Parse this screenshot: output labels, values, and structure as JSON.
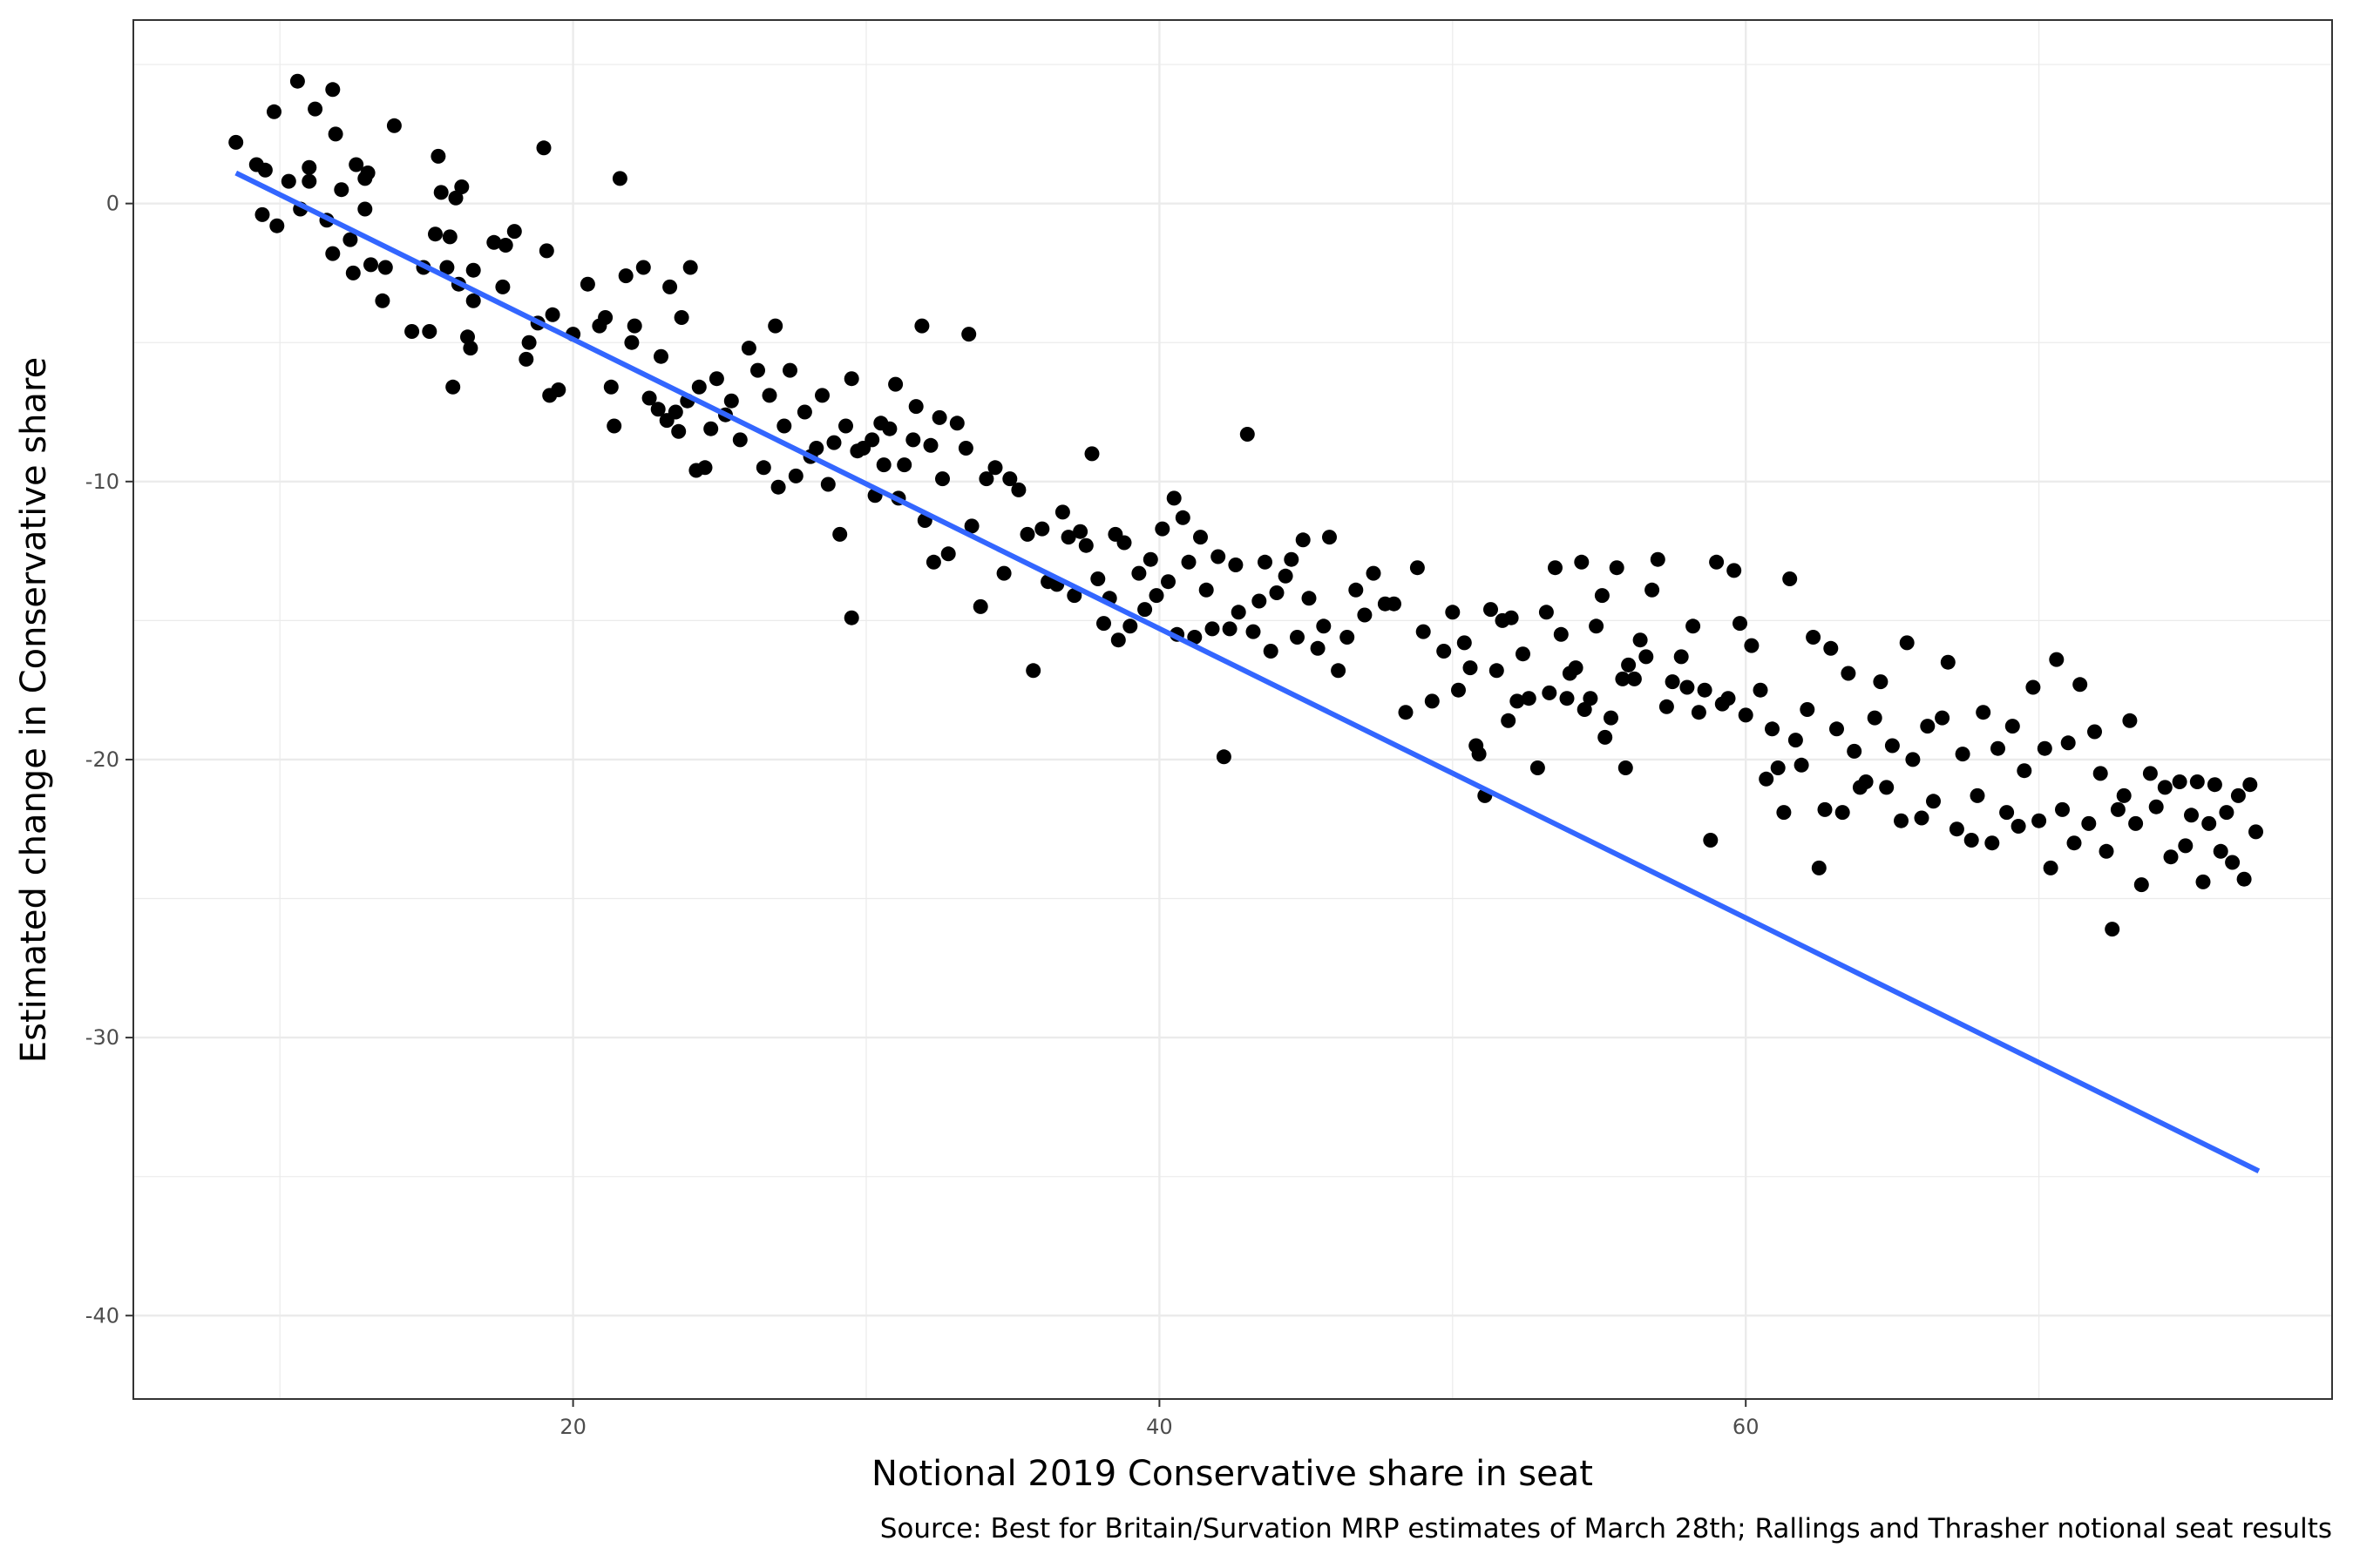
{
  "chart_data": {
    "type": "scatter",
    "xlabel": "Notional 2019 Conservative share in seat",
    "ylabel": "Estimated change in Conservative share",
    "caption": "Source: Best for Britain/Survation MRP estimates of March 28th; Rallings and Thrasher notional seat results",
    "xlim": [
      5,
      80
    ],
    "ylim": [
      -43,
      6.6
    ],
    "xticks": [
      20,
      40,
      60
    ],
    "yticks": [
      0,
      -10,
      -20,
      -30,
      -40
    ],
    "grid": true,
    "colors": {
      "points": "#000000",
      "trend": "#3366ff",
      "grid": "#ebebeb",
      "border": "#333333"
    },
    "trend_line": {
      "method": "linear",
      "x": [
        8.5,
        77.5
      ],
      "y": [
        1.1,
        -34.8
      ]
    },
    "points": [
      [
        8.5,
        2.2
      ],
      [
        9.2,
        1.4
      ],
      [
        9.5,
        1.2
      ],
      [
        9.4,
        -0.4
      ],
      [
        9.8,
        3.3
      ],
      [
        9.9,
        -0.8
      ],
      [
        10.3,
        0.8
      ],
      [
        10.6,
        4.4
      ],
      [
        10.7,
        -0.2
      ],
      [
        11.0,
        1.3
      ],
      [
        11.0,
        0.8
      ],
      [
        11.2,
        3.4
      ],
      [
        11.6,
        -0.6
      ],
      [
        11.8,
        4.1
      ],
      [
        11.9,
        2.5
      ],
      [
        12.1,
        0.5
      ],
      [
        11.8,
        -1.8
      ],
      [
        12.4,
        -1.3
      ],
      [
        12.5,
        -2.5
      ],
      [
        12.6,
        1.4
      ],
      [
        12.9,
        -0.2
      ],
      [
        13.0,
        1.1
      ],
      [
        13.1,
        -2.2
      ],
      [
        13.5,
        -3.5
      ],
      [
        13.6,
        -2.3
      ],
      [
        13.9,
        2.8
      ],
      [
        12.9,
        0.9
      ],
      [
        14.5,
        -4.6
      ],
      [
        14.9,
        -2.3
      ],
      [
        15.1,
        -4.6
      ],
      [
        15.3,
        -1.1
      ],
      [
        15.4,
        1.7
      ],
      [
        15.5,
        0.4
      ],
      [
        15.7,
        -2.3
      ],
      [
        15.8,
        -1.2
      ],
      [
        16.0,
        0.2
      ],
      [
        16.1,
        -2.9
      ],
      [
        16.2,
        0.6
      ],
      [
        16.5,
        -5.2
      ],
      [
        15.9,
        -6.6
      ],
      [
        16.6,
        -3.5
      ],
      [
        16.4,
        -4.8
      ],
      [
        16.6,
        -2.4
      ],
      [
        17.3,
        -1.4
      ],
      [
        17.6,
        -3.0
      ],
      [
        17.7,
        -1.5
      ],
      [
        18.0,
        -1.0
      ],
      [
        18.4,
        -5.6
      ],
      [
        18.5,
        -5.0
      ],
      [
        18.8,
        -4.3
      ],
      [
        19.0,
        2.0
      ],
      [
        19.1,
        -1.7
      ],
      [
        19.2,
        -6.9
      ],
      [
        19.3,
        -4.0
      ],
      [
        19.5,
        -6.7
      ],
      [
        20.0,
        -4.7
      ],
      [
        20.5,
        -2.9
      ],
      [
        20.9,
        -4.4
      ],
      [
        21.1,
        -4.1
      ],
      [
        21.3,
        -6.6
      ],
      [
        21.4,
        -8.0
      ],
      [
        21.6,
        0.9
      ],
      [
        21.8,
        -2.6
      ],
      [
        22.0,
        -5.0
      ],
      [
        22.1,
        -4.4
      ],
      [
        22.4,
        -2.3
      ],
      [
        22.6,
        -7.0
      ],
      [
        22.9,
        -7.4
      ],
      [
        23.0,
        -5.5
      ],
      [
        23.2,
        -7.8
      ],
      [
        23.3,
        -3.0
      ],
      [
        23.5,
        -7.5
      ],
      [
        23.6,
        -8.2
      ],
      [
        23.7,
        -4.1
      ],
      [
        23.9,
        -7.1
      ],
      [
        24.0,
        -2.3
      ],
      [
        24.2,
        -9.6
      ],
      [
        24.3,
        -6.6
      ],
      [
        24.5,
        -9.5
      ],
      [
        24.7,
        -8.1
      ],
      [
        24.9,
        -6.3
      ],
      [
        25.2,
        -7.6
      ],
      [
        25.4,
        -7.1
      ],
      [
        25.7,
        -8.5
      ],
      [
        26.0,
        -5.2
      ],
      [
        26.3,
        -6.0
      ],
      [
        26.5,
        -9.5
      ],
      [
        26.7,
        -6.9
      ],
      [
        26.9,
        -4.4
      ],
      [
        27.0,
        -10.2
      ],
      [
        27.2,
        -8.0
      ],
      [
        27.4,
        -6.0
      ],
      [
        27.6,
        -9.8
      ],
      [
        27.9,
        -7.5
      ],
      [
        28.1,
        -9.1
      ],
      [
        28.3,
        -8.8
      ],
      [
        28.5,
        -6.9
      ],
      [
        28.7,
        -10.1
      ],
      [
        28.9,
        -8.6
      ],
      [
        29.1,
        -11.9
      ],
      [
        29.3,
        -8.0
      ],
      [
        29.5,
        -6.3
      ],
      [
        29.5,
        -14.9
      ],
      [
        29.7,
        -8.9
      ],
      [
        29.9,
        -8.8
      ],
      [
        30.2,
        -8.5
      ],
      [
        30.3,
        -10.5
      ],
      [
        30.5,
        -7.9
      ],
      [
        30.6,
        -9.4
      ],
      [
        30.8,
        -8.1
      ],
      [
        31.0,
        -6.5
      ],
      [
        31.1,
        -10.6
      ],
      [
        31.3,
        -9.4
      ],
      [
        31.6,
        -8.5
      ],
      [
        31.7,
        -7.3
      ],
      [
        31.9,
        -4.4
      ],
      [
        32.0,
        -11.4
      ],
      [
        32.2,
        -8.7
      ],
      [
        32.3,
        -12.9
      ],
      [
        32.5,
        -7.7
      ],
      [
        32.6,
        -9.9
      ],
      [
        32.8,
        -12.6
      ],
      [
        33.1,
        -7.9
      ],
      [
        33.4,
        -8.8
      ],
      [
        33.5,
        -4.7
      ],
      [
        33.6,
        -11.6
      ],
      [
        33.9,
        -14.5
      ],
      [
        34.1,
        -9.9
      ],
      [
        34.4,
        -9.5
      ],
      [
        34.7,
        -13.3
      ],
      [
        34.9,
        -9.9
      ],
      [
        35.2,
        -10.3
      ],
      [
        35.5,
        -11.9
      ],
      [
        35.7,
        -16.8
      ],
      [
        36.0,
        -11.7
      ],
      [
        36.2,
        -13.6
      ],
      [
        36.5,
        -13.7
      ],
      [
        36.7,
        -11.1
      ],
      [
        36.9,
        -12.0
      ],
      [
        37.1,
        -14.1
      ],
      [
        37.3,
        -11.8
      ],
      [
        37.5,
        -12.3
      ],
      [
        37.7,
        -9.0
      ],
      [
        37.9,
        -13.5
      ],
      [
        38.1,
        -15.1
      ],
      [
        38.3,
        -14.2
      ],
      [
        38.5,
        -11.9
      ],
      [
        38.6,
        -15.7
      ],
      [
        38.8,
        -12.2
      ],
      [
        39.0,
        -15.2
      ],
      [
        39.3,
        -13.3
      ],
      [
        39.5,
        -14.6
      ],
      [
        39.7,
        -12.8
      ],
      [
        39.9,
        -14.1
      ],
      [
        40.1,
        -11.7
      ],
      [
        40.3,
        -13.6
      ],
      [
        40.5,
        -10.6
      ],
      [
        40.6,
        -15.5
      ],
      [
        40.8,
        -11.3
      ],
      [
        41.0,
        -12.9
      ],
      [
        41.2,
        -15.6
      ],
      [
        41.4,
        -12.0
      ],
      [
        41.6,
        -13.9
      ],
      [
        41.8,
        -15.3
      ],
      [
        42.0,
        -12.7
      ],
      [
        42.2,
        -19.9
      ],
      [
        42.4,
        -15.3
      ],
      [
        42.6,
        -13.0
      ],
      [
        42.7,
        -14.7
      ],
      [
        43.0,
        -8.3
      ],
      [
        43.2,
        -15.4
      ],
      [
        43.4,
        -14.3
      ],
      [
        43.6,
        -12.9
      ],
      [
        43.8,
        -16.1
      ],
      [
        44.0,
        -14.0
      ],
      [
        44.3,
        -13.4
      ],
      [
        44.5,
        -12.8
      ],
      [
        44.7,
        -15.6
      ],
      [
        44.9,
        -12.1
      ],
      [
        45.1,
        -14.2
      ],
      [
        45.4,
        -16.0
      ],
      [
        45.6,
        -15.2
      ],
      [
        45.8,
        -12.0
      ],
      [
        46.1,
        -16.8
      ],
      [
        46.4,
        -15.6
      ],
      [
        46.7,
        -13.9
      ],
      [
        47.0,
        -14.8
      ],
      [
        47.3,
        -13.3
      ],
      [
        47.7,
        -14.4
      ],
      [
        48.0,
        -14.4
      ],
      [
        48.4,
        -18.3
      ],
      [
        48.8,
        -13.1
      ],
      [
        49.0,
        -15.4
      ],
      [
        49.3,
        -17.9
      ],
      [
        49.7,
        -16.1
      ],
      [
        50.0,
        -14.7
      ],
      [
        50.2,
        -17.5
      ],
      [
        50.4,
        -15.8
      ],
      [
        50.6,
        -16.7
      ],
      [
        50.8,
        -19.5
      ],
      [
        50.9,
        -19.8
      ],
      [
        51.1,
        -21.3
      ],
      [
        51.3,
        -14.6
      ],
      [
        51.5,
        -16.8
      ],
      [
        51.7,
        -15.0
      ],
      [
        51.9,
        -18.6
      ],
      [
        52.0,
        -14.9
      ],
      [
        52.2,
        -17.9
      ],
      [
        52.4,
        -16.2
      ],
      [
        52.6,
        -17.8
      ],
      [
        52.9,
        -20.3
      ],
      [
        53.2,
        -14.7
      ],
      [
        53.3,
        -17.6
      ],
      [
        53.5,
        -13.1
      ],
      [
        53.7,
        -15.5
      ],
      [
        53.9,
        -17.8
      ],
      [
        54.0,
        -16.9
      ],
      [
        54.2,
        -16.7
      ],
      [
        54.4,
        -12.9
      ],
      [
        54.5,
        -18.2
      ],
      [
        54.7,
        -17.8
      ],
      [
        54.9,
        -15.2
      ],
      [
        55.1,
        -14.1
      ],
      [
        55.2,
        -19.2
      ],
      [
        55.4,
        -18.5
      ],
      [
        55.6,
        -13.1
      ],
      [
        55.8,
        -17.1
      ],
      [
        55.9,
        -20.3
      ],
      [
        56.0,
        -16.6
      ],
      [
        56.2,
        -17.1
      ],
      [
        56.4,
        -15.7
      ],
      [
        56.6,
        -16.3
      ],
      [
        56.8,
        -13.9
      ],
      [
        57.0,
        -12.8
      ],
      [
        57.3,
        -18.1
      ],
      [
        57.5,
        -17.2
      ],
      [
        57.8,
        -16.3
      ],
      [
        58.0,
        -17.4
      ],
      [
        58.2,
        -15.2
      ],
      [
        58.4,
        -18.3
      ],
      [
        58.6,
        -17.5
      ],
      [
        58.8,
        -22.9
      ],
      [
        59.0,
        -12.9
      ],
      [
        59.2,
        -18.0
      ],
      [
        59.4,
        -17.8
      ],
      [
        59.6,
        -13.2
      ],
      [
        59.8,
        -15.1
      ],
      [
        60.0,
        -18.4
      ],
      [
        60.2,
        -15.9
      ],
      [
        60.5,
        -17.5
      ],
      [
        60.7,
        -20.7
      ],
      [
        60.9,
        -18.9
      ],
      [
        61.1,
        -20.3
      ],
      [
        61.3,
        -21.9
      ],
      [
        61.5,
        -13.5
      ],
      [
        61.7,
        -19.3
      ],
      [
        61.9,
        -20.2
      ],
      [
        62.1,
        -18.2
      ],
      [
        62.3,
        -15.6
      ],
      [
        62.5,
        -23.9
      ],
      [
        62.7,
        -21.8
      ],
      [
        62.9,
        -16.0
      ],
      [
        63.1,
        -18.9
      ],
      [
        63.3,
        -21.9
      ],
      [
        63.5,
        -16.9
      ],
      [
        63.7,
        -19.7
      ],
      [
        63.9,
        -21.0
      ],
      [
        64.1,
        -20.8
      ],
      [
        64.4,
        -18.5
      ],
      [
        64.6,
        -17.2
      ],
      [
        64.8,
        -21.0
      ],
      [
        65.0,
        -19.5
      ],
      [
        65.3,
        -22.2
      ],
      [
        65.5,
        -15.8
      ],
      [
        65.7,
        -20.0
      ],
      [
        66.0,
        -22.1
      ],
      [
        66.2,
        -18.8
      ],
      [
        66.4,
        -21.5
      ],
      [
        66.7,
        -18.5
      ],
      [
        66.9,
        -16.5
      ],
      [
        67.2,
        -22.5
      ],
      [
        67.4,
        -19.8
      ],
      [
        67.7,
        -22.9
      ],
      [
        67.9,
        -21.3
      ],
      [
        68.1,
        -18.3
      ],
      [
        68.4,
        -23.0
      ],
      [
        68.6,
        -19.6
      ],
      [
        68.9,
        -21.9
      ],
      [
        69.1,
        -18.8
      ],
      [
        69.3,
        -22.4
      ],
      [
        69.5,
        -20.4
      ],
      [
        69.8,
        -17.4
      ],
      [
        70.0,
        -22.2
      ],
      [
        70.2,
        -19.6
      ],
      [
        70.4,
        -23.9
      ],
      [
        70.6,
        -16.4
      ],
      [
        70.8,
        -21.8
      ],
      [
        71.0,
        -19.4
      ],
      [
        71.2,
        -23.0
      ],
      [
        71.4,
        -17.3
      ],
      [
        71.7,
        -22.3
      ],
      [
        71.9,
        -19.0
      ],
      [
        72.1,
        -20.5
      ],
      [
        72.3,
        -23.3
      ],
      [
        72.5,
        -26.1
      ],
      [
        72.7,
        -21.8
      ],
      [
        72.9,
        -21.3
      ],
      [
        73.1,
        -18.6
      ],
      [
        73.3,
        -22.3
      ],
      [
        73.5,
        -24.5
      ],
      [
        73.8,
        -20.5
      ],
      [
        74.0,
        -21.7
      ],
      [
        74.3,
        -21.0
      ],
      [
        74.5,
        -23.5
      ],
      [
        74.8,
        -20.8
      ],
      [
        75.0,
        -23.1
      ],
      [
        75.2,
        -22.0
      ],
      [
        75.4,
        -20.8
      ],
      [
        75.6,
        -24.4
      ],
      [
        75.8,
        -22.3
      ],
      [
        76.0,
        -20.9
      ],
      [
        76.2,
        -23.3
      ],
      [
        76.4,
        -21.9
      ],
      [
        76.6,
        -23.7
      ],
      [
        76.8,
        -21.3
      ],
      [
        77.0,
        -24.3
      ],
      [
        77.2,
        -20.9
      ],
      [
        77.4,
        -22.6
      ]
    ]
  }
}
